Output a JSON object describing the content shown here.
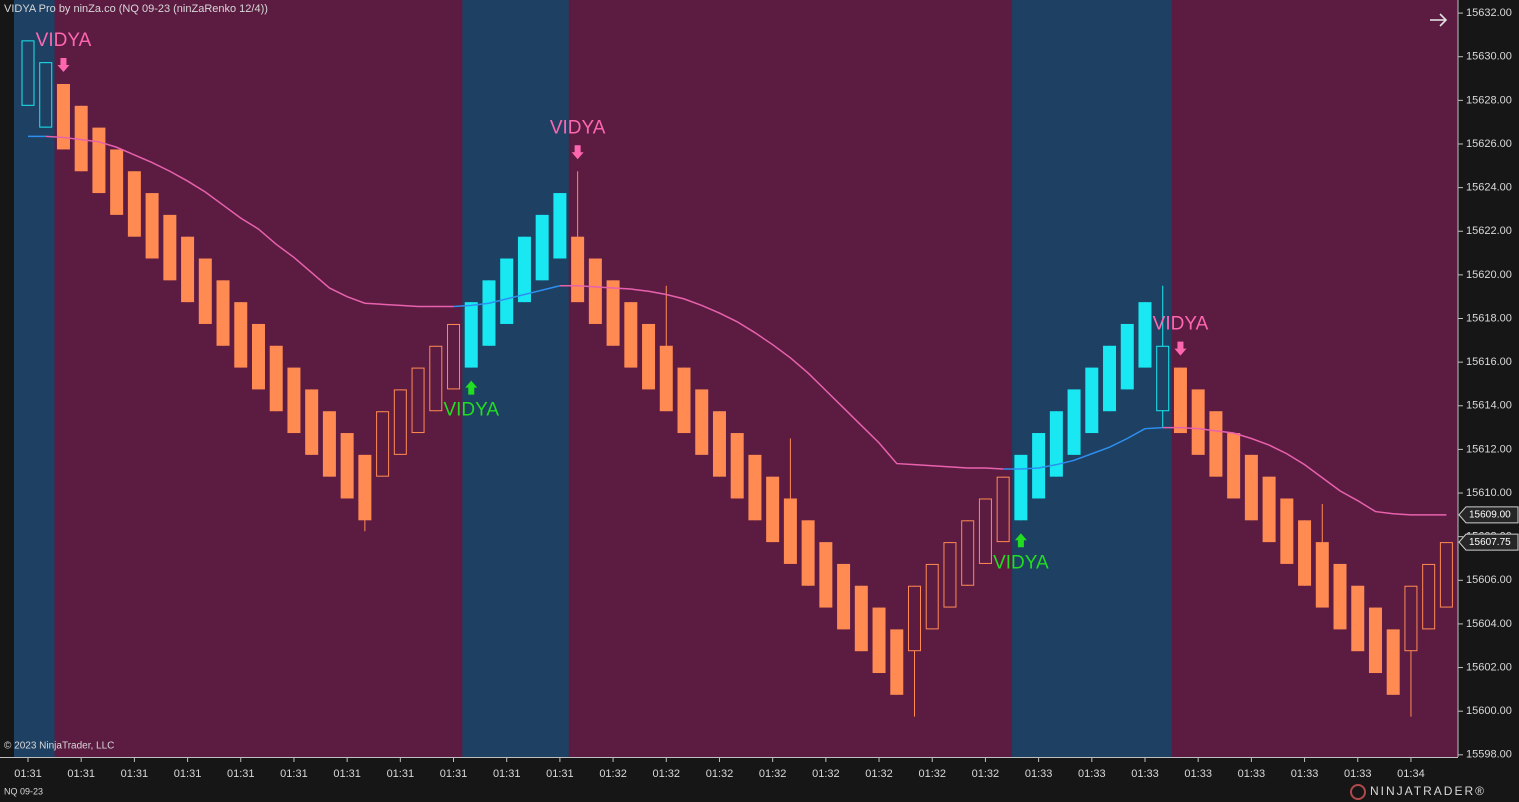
{
  "chart_data": {
    "type": "candlestick",
    "title": "VIDYA Pro by ninZa.co (NQ 09-23 (ninZaRenko 12/4))",
    "copyright": "© 2023 NinjaTrader, LLC",
    "instrument": "NQ 09-23",
    "brand": "NINJATRADER®",
    "categories": [
      "01:31",
      null,
      null,
      "01:31",
      null,
      null,
      "01:31",
      null,
      null,
      "01:31",
      null,
      null,
      "01:31",
      null,
      null,
      "01:31",
      null,
      null,
      "01:31",
      null,
      null,
      "01:31",
      null,
      null,
      "01:31",
      null,
      null,
      "01:31",
      null,
      null,
      "01:31",
      null,
      null,
      "01:32",
      null,
      null,
      "01:32",
      null,
      null,
      "01:32",
      null,
      null,
      "01:32",
      null,
      null,
      "01:32",
      null,
      null,
      "01:32",
      null,
      null,
      "01:32",
      null,
      null,
      "01:32",
      null,
      null,
      "01:33",
      null,
      null,
      "01:33",
      null,
      null,
      "01:33",
      null,
      null,
      "01:33",
      null,
      null,
      "01:33",
      null,
      null,
      "01:33",
      null,
      null,
      "01:33",
      null,
      null,
      "01:34",
      null,
      null
    ],
    "open": [
      15630.75,
      15629.75,
      15628.75,
      15627.75,
      15626.75,
      15625.75,
      15624.75,
      15623.75,
      15622.75,
      15621.75,
      15620.75,
      15619.75,
      15618.75,
      15617.75,
      15616.75,
      15615.75,
      15614.75,
      15613.75,
      15612.75,
      15611.75,
      15610.75,
      15611.75,
      15612.75,
      15613.75,
      15614.75,
      15615.75,
      15616.75,
      15617.75,
      15618.75,
      15619.75,
      15620.75,
      15621.75,
      15620.75,
      15619.75,
      15618.75,
      15617.75,
      15616.75,
      15615.75,
      15614.75,
      15613.75,
      15612.75,
      15611.75,
      15610.75,
      15609.75,
      15608.75,
      15607.75,
      15606.75,
      15605.75,
      15604.75,
      15603.75,
      15602.75,
      15603.75,
      15604.75,
      15605.75,
      15606.75,
      15607.75,
      15608.75,
      15609.75,
      15610.75,
      15611.75,
      15612.75,
      15613.75,
      15614.75,
      15615.75,
      15616.75,
      15615.75,
      15614.75,
      15613.75,
      15612.75,
      15611.75,
      15610.75,
      15609.75,
      15608.75,
      15607.75,
      15606.75,
      15605.75,
      15604.75,
      15603.75,
      15602.75,
      15603.75,
      15604.75
    ],
    "high": [
      15630.75,
      15629.75,
      15628.75,
      15627.75,
      15626.75,
      15625.75,
      15624.75,
      15623.75,
      15622.75,
      15621.75,
      15620.75,
      15619.75,
      15618.75,
      15617.75,
      15616.75,
      15615.75,
      15614.75,
      15613.75,
      15612.75,
      15611.75,
      15613.75,
      15614.75,
      15615.75,
      15616.75,
      15617.75,
      15618.75,
      15619.75,
      15620.75,
      15621.75,
      15622.75,
      15623.75,
      15624.75,
      15620.75,
      15619.75,
      15618.75,
      15617.75,
      15619.5,
      15615.75,
      15614.75,
      15613.75,
      15612.75,
      15611.75,
      15610.75,
      15612.5,
      15608.75,
      15607.75,
      15606.75,
      15605.75,
      15604.75,
      15603.75,
      15605.75,
      15606.75,
      15607.75,
      15608.75,
      15609.75,
      15610.75,
      15611.75,
      15612.75,
      15613.75,
      15614.75,
      15615.75,
      15616.75,
      15617.75,
      15618.75,
      15619.5,
      15615.75,
      15614.75,
      15613.75,
      15612.75,
      15611.75,
      15610.75,
      15609.75,
      15608.75,
      15609.5,
      15606.75,
      15605.75,
      15604.75,
      15603.75,
      15605.75,
      15606.75,
      15607.75
    ],
    "low": [
      15627.75,
      15626.75,
      15625.75,
      15624.75,
      15623.75,
      15622.75,
      15621.75,
      15620.75,
      15619.75,
      15618.75,
      15617.75,
      15616.75,
      15615.75,
      15614.75,
      15613.75,
      15612.75,
      15611.75,
      15610.75,
      15609.75,
      15608.25,
      15610.75,
      15611.75,
      15612.75,
      15613.75,
      15614.75,
      15615.75,
      15616.75,
      15617.75,
      15618.75,
      15619.75,
      15620.75,
      15618.75,
      15617.75,
      15616.75,
      15615.75,
      15614.75,
      15613.75,
      15612.75,
      15611.75,
      15610.75,
      15609.75,
      15608.75,
      15607.75,
      15606.75,
      15605.75,
      15604.75,
      15603.75,
      15602.75,
      15601.75,
      15600.75,
      15599.75,
      15603.75,
      15604.75,
      15605.75,
      15606.75,
      15607.75,
      15608.75,
      15609.75,
      15610.75,
      15611.75,
      15612.75,
      15613.75,
      15614.75,
      15615.75,
      15613.0,
      15612.75,
      15611.75,
      15610.75,
      15609.75,
      15608.75,
      15607.75,
      15606.75,
      15605.75,
      15604.75,
      15603.75,
      15602.75,
      15601.75,
      15600.75,
      15599.75,
      15603.75,
      15604.75
    ],
    "close": [
      15627.75,
      15626.75,
      15625.75,
      15624.75,
      15623.75,
      15622.75,
      15621.75,
      15620.75,
      15619.75,
      15618.75,
      15617.75,
      15616.75,
      15615.75,
      15614.75,
      15613.75,
      15612.75,
      15611.75,
      15610.75,
      15609.75,
      15608.75,
      15613.75,
      15614.75,
      15615.75,
      15616.75,
      15617.75,
      15618.75,
      15619.75,
      15620.75,
      15621.75,
      15622.75,
      15623.75,
      15618.75,
      15617.75,
      15616.75,
      15615.75,
      15614.75,
      15613.75,
      15612.75,
      15611.75,
      15610.75,
      15609.75,
      15608.75,
      15607.75,
      15606.75,
      15605.75,
      15604.75,
      15603.75,
      15602.75,
      15601.75,
      15600.75,
      15605.75,
      15606.75,
      15607.75,
      15608.75,
      15609.75,
      15610.75,
      15611.75,
      15612.75,
      15613.75,
      15614.75,
      15615.75,
      15616.75,
      15617.75,
      15618.75,
      15613.75,
      15612.75,
      15611.75,
      15610.75,
      15609.75,
      15608.75,
      15607.75,
      15606.75,
      15605.75,
      15604.75,
      15603.75,
      15602.75,
      15601.75,
      15600.75,
      15605.75,
      15606.75,
      15607.75
    ],
    "trend": [
      "up",
      "up",
      "down",
      "down",
      "down",
      "down",
      "down",
      "down",
      "down",
      "down",
      "down",
      "down",
      "down",
      "down",
      "down",
      "down",
      "down",
      "down",
      "down",
      "down",
      "down",
      "down",
      "down",
      "down",
      "down",
      "up",
      "up",
      "up",
      "up",
      "up",
      "up",
      "down",
      "down",
      "down",
      "down",
      "down",
      "down",
      "down",
      "down",
      "down",
      "down",
      "down",
      "down",
      "down",
      "down",
      "down",
      "down",
      "down",
      "down",
      "down",
      "down",
      "down",
      "down",
      "down",
      "down",
      "down",
      "up",
      "up",
      "up",
      "up",
      "up",
      "up",
      "up",
      "up",
      "up",
      "down",
      "down",
      "down",
      "down",
      "down",
      "down",
      "down",
      "down",
      "down",
      "down",
      "down",
      "down",
      "down",
      "down",
      "down",
      "down"
    ],
    "vidya": {
      "values": [
        15626.35,
        15626.35,
        15626.3,
        15626.2,
        15626.1,
        15625.85,
        15625.5,
        15625.15,
        15624.75,
        15624.3,
        15623.8,
        15623.2,
        15622.6,
        15622.1,
        15621.4,
        15620.8,
        15620.1,
        15619.4,
        15619.0,
        15618.7,
        15618.65,
        15618.6,
        15618.55,
        15618.55,
        15618.55,
        15618.6,
        15618.7,
        15618.9,
        15619.1,
        15619.3,
        15619.5,
        15619.5,
        15619.45,
        15619.4,
        15619.35,
        15619.25,
        15619.1,
        15618.9,
        15618.6,
        15618.25,
        15617.85,
        15617.35,
        15616.8,
        15616.2,
        15615.5,
        15614.7,
        15613.9,
        15613.1,
        15612.3,
        15611.35,
        15611.3,
        15611.25,
        15611.2,
        15611.15,
        15611.15,
        15611.1,
        15611.1,
        15611.15,
        15611.3,
        15611.5,
        15611.8,
        15612.1,
        15612.5,
        15612.95,
        15613.0,
        15613.0,
        15612.95,
        15612.85,
        15612.75,
        15612.5,
        15612.2,
        15611.8,
        15611.3,
        15610.7,
        15610.1,
        15609.65,
        15609.15,
        15609.05,
        15609.0,
        15609.0,
        15609.0
      ]
    },
    "signals": [
      {
        "bar": 2,
        "side": "sell",
        "label": "VIDYA"
      },
      {
        "bar": 25,
        "side": "buy",
        "label": "VIDYA"
      },
      {
        "bar": 31,
        "side": "sell",
        "label": "VIDYA"
      },
      {
        "bar": 56,
        "side": "buy",
        "label": "VIDYA"
      },
      {
        "bar": 65,
        "side": "sell",
        "label": "VIDYA"
      }
    ],
    "price_markers": [
      {
        "value": 15609,
        "label": "15609.00"
      },
      {
        "value": 15607.75,
        "label": "15607.75"
      }
    ],
    "ylim": [
      15597.9,
      15632.6
    ],
    "yticks": [
      {
        "value": 15598,
        "label": "15598.00"
      },
      {
        "value": 15600,
        "label": "15600.00"
      },
      {
        "value": 15602,
        "label": "15602.00"
      },
      {
        "value": 15604,
        "label": "15604.00"
      },
      {
        "value": 15606,
        "label": "15606.00"
      },
      {
        "value": 15608,
        "label": "15608.00"
      },
      {
        "value": 15610,
        "label": "15610.00"
      },
      {
        "value": 15612,
        "label": "15612.00"
      },
      {
        "value": 15614,
        "label": "15614.00"
      },
      {
        "value": 15616,
        "label": "15616.00"
      },
      {
        "value": 15618,
        "label": "15618.00"
      },
      {
        "value": 15620,
        "label": "15620.00"
      },
      {
        "value": 15622,
        "label": "15622.00"
      },
      {
        "value": 15624,
        "label": "15624.00"
      },
      {
        "value": 15626,
        "label": "15626.00"
      },
      {
        "value": 15628,
        "label": "15628.00"
      },
      {
        "value": 15630,
        "label": "15630.00"
      },
      {
        "value": 15632,
        "label": "15632.00"
      }
    ],
    "grid": false,
    "colors": {
      "up_bar": "#19e8f2",
      "down_bar": "#ff8a52",
      "up_background": "#1e4062",
      "down_background": "#5c1c42",
      "up_line": "#2d8ff0",
      "down_line": "#e861ad",
      "buy_signal": "#22dd22",
      "sell_signal": "#ff66b0"
    }
  }
}
